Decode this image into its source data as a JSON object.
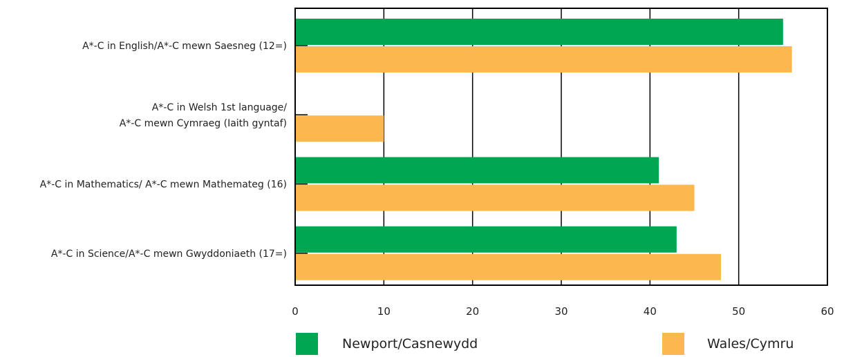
{
  "chart_data": {
    "type": "bar",
    "orientation": "horizontal",
    "categories": [
      [
        "A*-C in English/A*-C mewn Saesneg (12=)"
      ],
      [
        "A*-C in Welsh 1st language/",
        "A*-C mewn Cymraeg (Iaith gyntaf)"
      ],
      [
        "A*-C in Mathematics/ A*-C mewn Mathemateg (16)"
      ],
      [
        "A*-C in Science/A*-C mewn Gwyddoniaeth (17=)"
      ]
    ],
    "series": [
      {
        "name": "Newport/Casnewydd",
        "color": "#00a651",
        "values": [
          55,
          null,
          41,
          43
        ]
      },
      {
        "name": "Wales/Cymru",
        "color": "#fbb84e",
        "values": [
          56,
          10,
          45,
          48
        ]
      }
    ],
    "xlim": [
      0,
      60
    ],
    "xticks": [
      0,
      10,
      20,
      30,
      40,
      50,
      60
    ],
    "grid": true,
    "legend_position": "bottom"
  }
}
